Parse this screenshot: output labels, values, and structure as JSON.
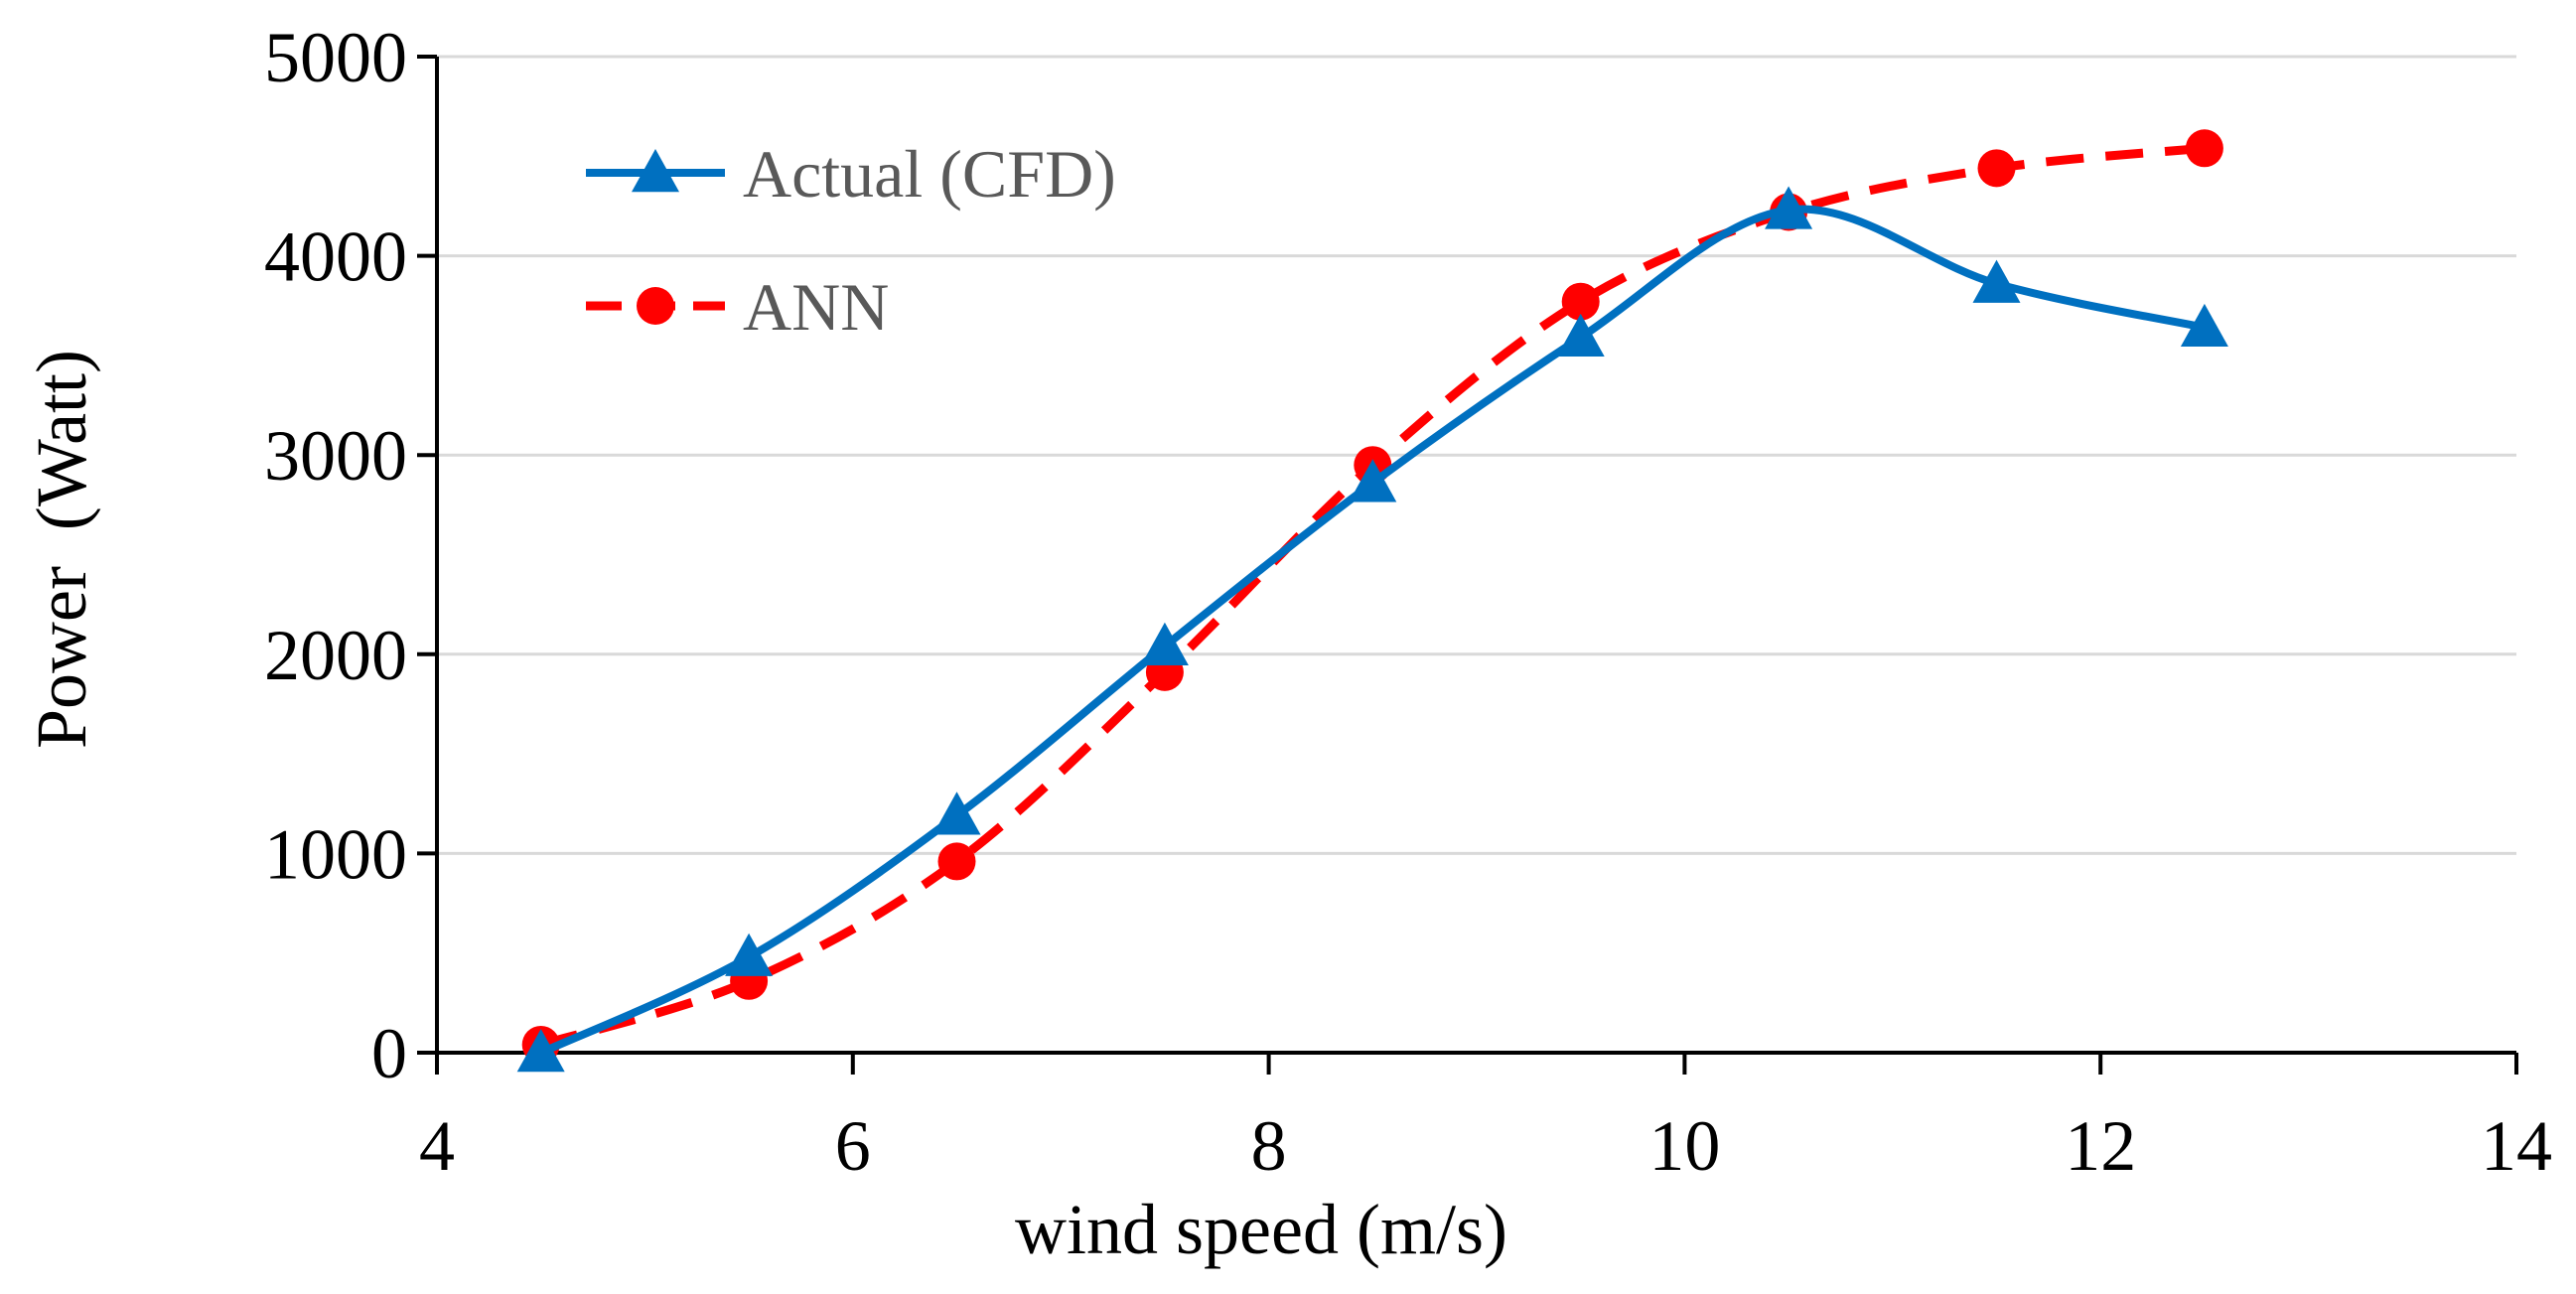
{
  "chart_data": {
    "type": "line",
    "title": "",
    "xlabel": "wind speed (m/s)",
    "ylabel": "Power  (Watt)",
    "xlim": [
      4,
      14
    ],
    "ylim": [
      0,
      5000
    ],
    "x_ticks": [
      4,
      6,
      8,
      10,
      12,
      14
    ],
    "y_ticks": [
      0,
      1000,
      2000,
      3000,
      4000,
      5000
    ],
    "x_tick_labels": [
      "4",
      "6",
      "8",
      "10",
      "12",
      "14"
    ],
    "y_tick_labels": [
      "0",
      "1000",
      "2000",
      "3000",
      "4000",
      "5000"
    ],
    "grid": "horizontal",
    "legend_position": "top-left",
    "series": [
      {
        "name": "Actual (CFD)",
        "color": "#0070C0",
        "marker": "triangle",
        "dash": "solid",
        "x": [
          4.5,
          5.5,
          6.5,
          7.5,
          8.5,
          9.5,
          10.5,
          11.5,
          12.5
        ],
        "values": [
          0,
          480,
          1190,
          2040,
          2860,
          3590,
          4230,
          3860,
          3640
        ]
      },
      {
        "name": "ANN",
        "color": "#FF0000",
        "marker": "circle",
        "dash": "dashed",
        "x": [
          4.5,
          5.5,
          6.5,
          7.5,
          8.5,
          9.5,
          10.5,
          11.5,
          12.5
        ],
        "values": [
          40,
          360,
          960,
          1910,
          2950,
          3770,
          4220,
          4440,
          4540
        ]
      }
    ]
  }
}
